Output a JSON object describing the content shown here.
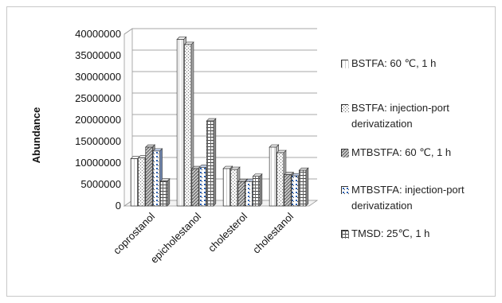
{
  "chart_data": {
    "type": "bar",
    "title": "",
    "xlabel": "",
    "ylabel": "Abundance",
    "ylim": [
      0,
      40000000
    ],
    "y_ticks": [
      "0",
      "5000000",
      "10000000",
      "15000000",
      "20000000",
      "25000000",
      "30000000",
      "35000000",
      "40000000"
    ],
    "categories": [
      "coprostanol",
      "epicholestanol",
      "cholesterol",
      "cholestanol"
    ],
    "grid": true,
    "legend_position": "right",
    "series": [
      {
        "name": "BSTFA: 60 ℃, 1 h",
        "values": [
          11000000,
          38800000,
          8700000,
          13700000
        ]
      },
      {
        "name": "BSTFA: injection-port derivatization",
        "values": [
          11200000,
          37600000,
          8500000,
          12400000
        ]
      },
      {
        "name": "MTBSTFA: 60 ℃, 1 h",
        "values": [
          13700000,
          8700000,
          5700000,
          7300000
        ]
      },
      {
        "name": "MTBSTFA: injection-port derivatization",
        "values": [
          12800000,
          9000000,
          5700000,
          7000000
        ]
      },
      {
        "name": "TMSD: 25℃, 1 h",
        "values": [
          5800000,
          19800000,
          6900000,
          8300000
        ]
      }
    ]
  }
}
